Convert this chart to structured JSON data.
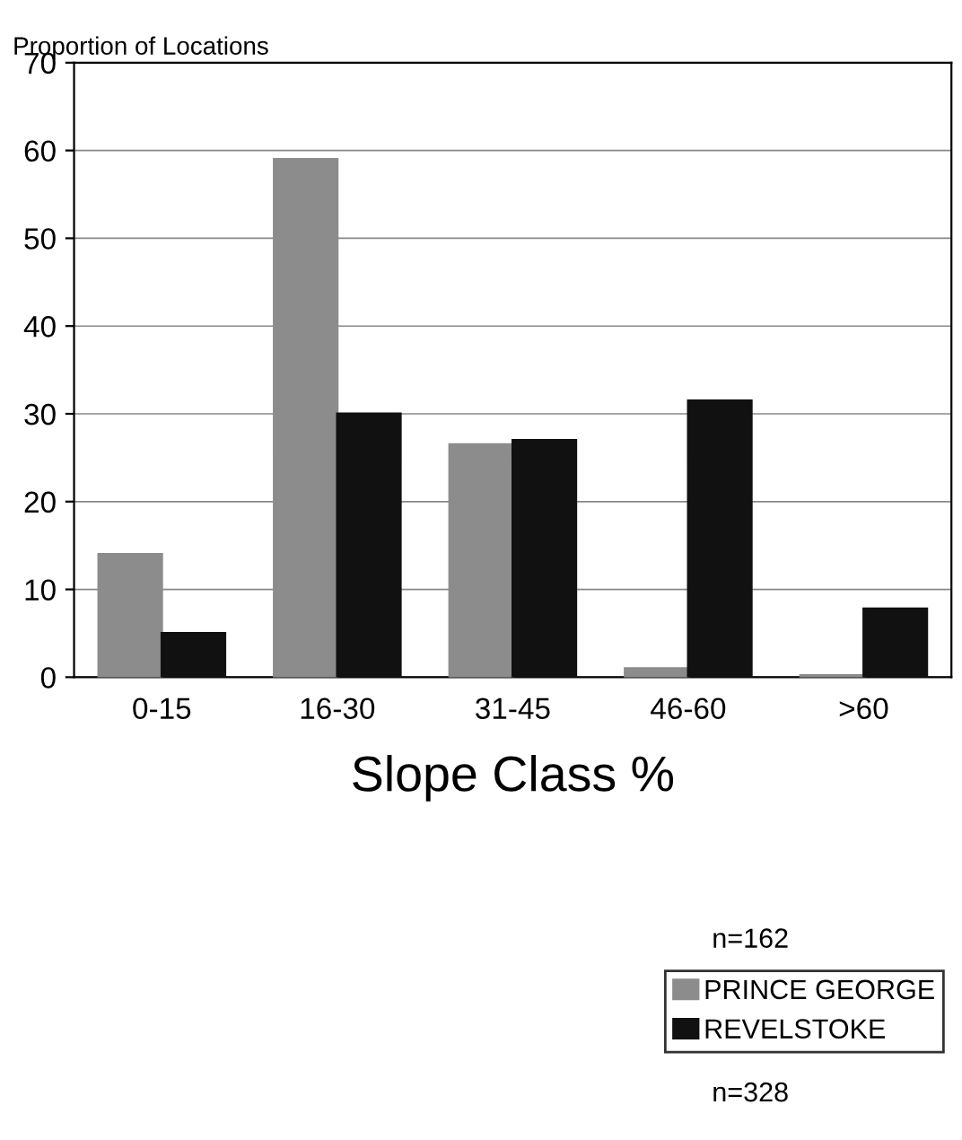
{
  "chart_data": {
    "type": "bar",
    "ylabel": "Proportion of Locations",
    "xlabel": "Slope Class %",
    "categories": [
      "0-15",
      "16-30",
      "31-45",
      "46-60",
      ">60"
    ],
    "series": [
      {
        "name": "PRINCE GEORGE",
        "color": "#8c8c8c",
        "values": [
          14,
          59,
          26.5,
          1,
          0.2
        ]
      },
      {
        "name": "REVELSTOKE",
        "color": "#111111",
        "values": [
          5,
          30,
          27,
          31.5,
          7.8
        ]
      }
    ],
    "ylim": [
      0,
      70
    ],
    "yticks": [
      0,
      10,
      20,
      30,
      40,
      50,
      60,
      70
    ],
    "grid": "y",
    "legend": "bottom right",
    "annotations": [
      "n=162",
      "n=328"
    ]
  }
}
